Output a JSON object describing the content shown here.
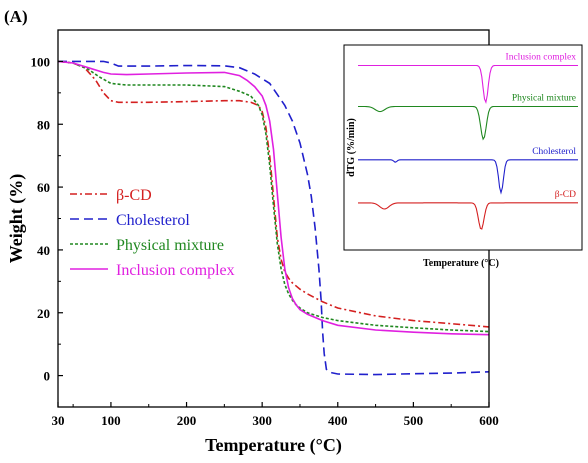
{
  "panel_label": "(A)",
  "chart_data": [
    {
      "type": "line",
      "xlabel": "Temperature (°C)",
      "ylabel": "Weight (%)",
      "xlim": [
        30,
        600
      ],
      "ylim": [
        -10,
        110
      ],
      "xticks": [
        30,
        100,
        200,
        300,
        400,
        500,
        600
      ],
      "yticks": [
        0,
        20,
        40,
        60,
        80,
        100
      ],
      "grid": false,
      "legend": "left-middle",
      "series": [
        {
          "name": "β-CD",
          "color": "#d42020",
          "dash": "dashdot",
          "x": [
            30,
            50,
            65,
            80,
            90,
            100,
            110,
            130,
            150,
            200,
            250,
            270,
            285,
            295,
            300,
            305,
            310,
            315,
            320,
            325,
            330,
            335,
            340,
            350,
            360,
            380,
            400,
            450,
            500,
            550,
            600
          ],
          "y": [
            100,
            99.5,
            98,
            94,
            90,
            87.5,
            87,
            87,
            87,
            87.2,
            87.5,
            87.5,
            87,
            86,
            84,
            79,
            70,
            57,
            44,
            37,
            33,
            31,
            29.5,
            27.5,
            26,
            23.5,
            21.5,
            19,
            17.5,
            16.5,
            15.5
          ]
        },
        {
          "name": "Cholesterol",
          "color": "#2020cc",
          "dash": "dashed",
          "x": [
            30,
            60,
            90,
            100,
            110,
            150,
            200,
            250,
            270,
            290,
            310,
            330,
            340,
            350,
            360,
            365,
            370,
            375,
            378,
            380,
            382,
            385,
            390,
            400,
            450,
            500,
            550,
            600
          ],
          "y": [
            100,
            100,
            100,
            99.5,
            98.5,
            98.5,
            98.7,
            98.6,
            98,
            96,
            93,
            86,
            81,
            74,
            64,
            57,
            47,
            34,
            24,
            14,
            7,
            2,
            1,
            0.5,
            0.3,
            0.6,
            0.8,
            1.2
          ]
        },
        {
          "name": "Physical mixture",
          "color": "#208820",
          "dash": "dotted",
          "x": [
            30,
            50,
            70,
            85,
            100,
            120,
            150,
            200,
            250,
            270,
            285,
            295,
            300,
            305,
            310,
            315,
            320,
            325,
            330,
            335,
            340,
            345,
            350,
            360,
            380,
            400,
            450,
            500,
            550,
            600
          ],
          "y": [
            100,
            99.5,
            97.5,
            95,
            93,
            92.5,
            92.5,
            92.5,
            92,
            90.5,
            89,
            86,
            83,
            77,
            67,
            54,
            42,
            34,
            29,
            26,
            24,
            22.5,
            21.5,
            20,
            18.5,
            17.5,
            16,
            15.2,
            14.5,
            14
          ]
        },
        {
          "name": "Inclusion complex",
          "color": "#e020e0",
          "dash": "solid",
          "x": [
            30,
            50,
            70,
            90,
            100,
            120,
            150,
            200,
            250,
            270,
            280,
            290,
            300,
            305,
            310,
            315,
            320,
            325,
            330,
            335,
            340,
            345,
            350,
            360,
            380,
            400,
            450,
            500,
            550,
            600
          ],
          "y": [
            100,
            99.5,
            98,
            96.5,
            96,
            95.8,
            96,
            96.3,
            96.5,
            95.5,
            94,
            92,
            89,
            86,
            81,
            72,
            58,
            44,
            34,
            28,
            24.5,
            22.5,
            21,
            19.5,
            17.5,
            16,
            14.5,
            13.8,
            13.3,
            13
          ]
        }
      ]
    },
    {
      "type": "line",
      "xlabel": "Temperature (°C)",
      "ylabel": "dTG (%/min)",
      "grid": false,
      "series": [
        {
          "name": "Inclusion complex",
          "color": "#e020e0",
          "baseline": 0.1,
          "peaks": [
            {
              "x": 0.58,
              "depth": 0.18,
              "width": 0.016
            }
          ]
        },
        {
          "name": "Physical mixture",
          "color": "#208820",
          "baseline": 0.3,
          "peaks": [
            {
              "x": 0.1,
              "depth": 0.025,
              "width": 0.03
            },
            {
              "x": 0.57,
              "depth": 0.16,
              "width": 0.018
            }
          ]
        },
        {
          "name": "Cholesterol",
          "color": "#2020cc",
          "baseline": 0.56,
          "peaks": [
            {
              "x": 0.17,
              "depth": 0.012,
              "width": 0.01
            },
            {
              "x": 0.65,
              "depth": 0.16,
              "width": 0.015
            }
          ]
        },
        {
          "name": "β-CD",
          "color": "#d42020",
          "baseline": 0.77,
          "peaks": [
            {
              "x": 0.12,
              "depth": 0.03,
              "width": 0.03
            },
            {
              "x": 0.56,
              "depth": 0.13,
              "width": 0.018
            }
          ]
        }
      ]
    }
  ]
}
